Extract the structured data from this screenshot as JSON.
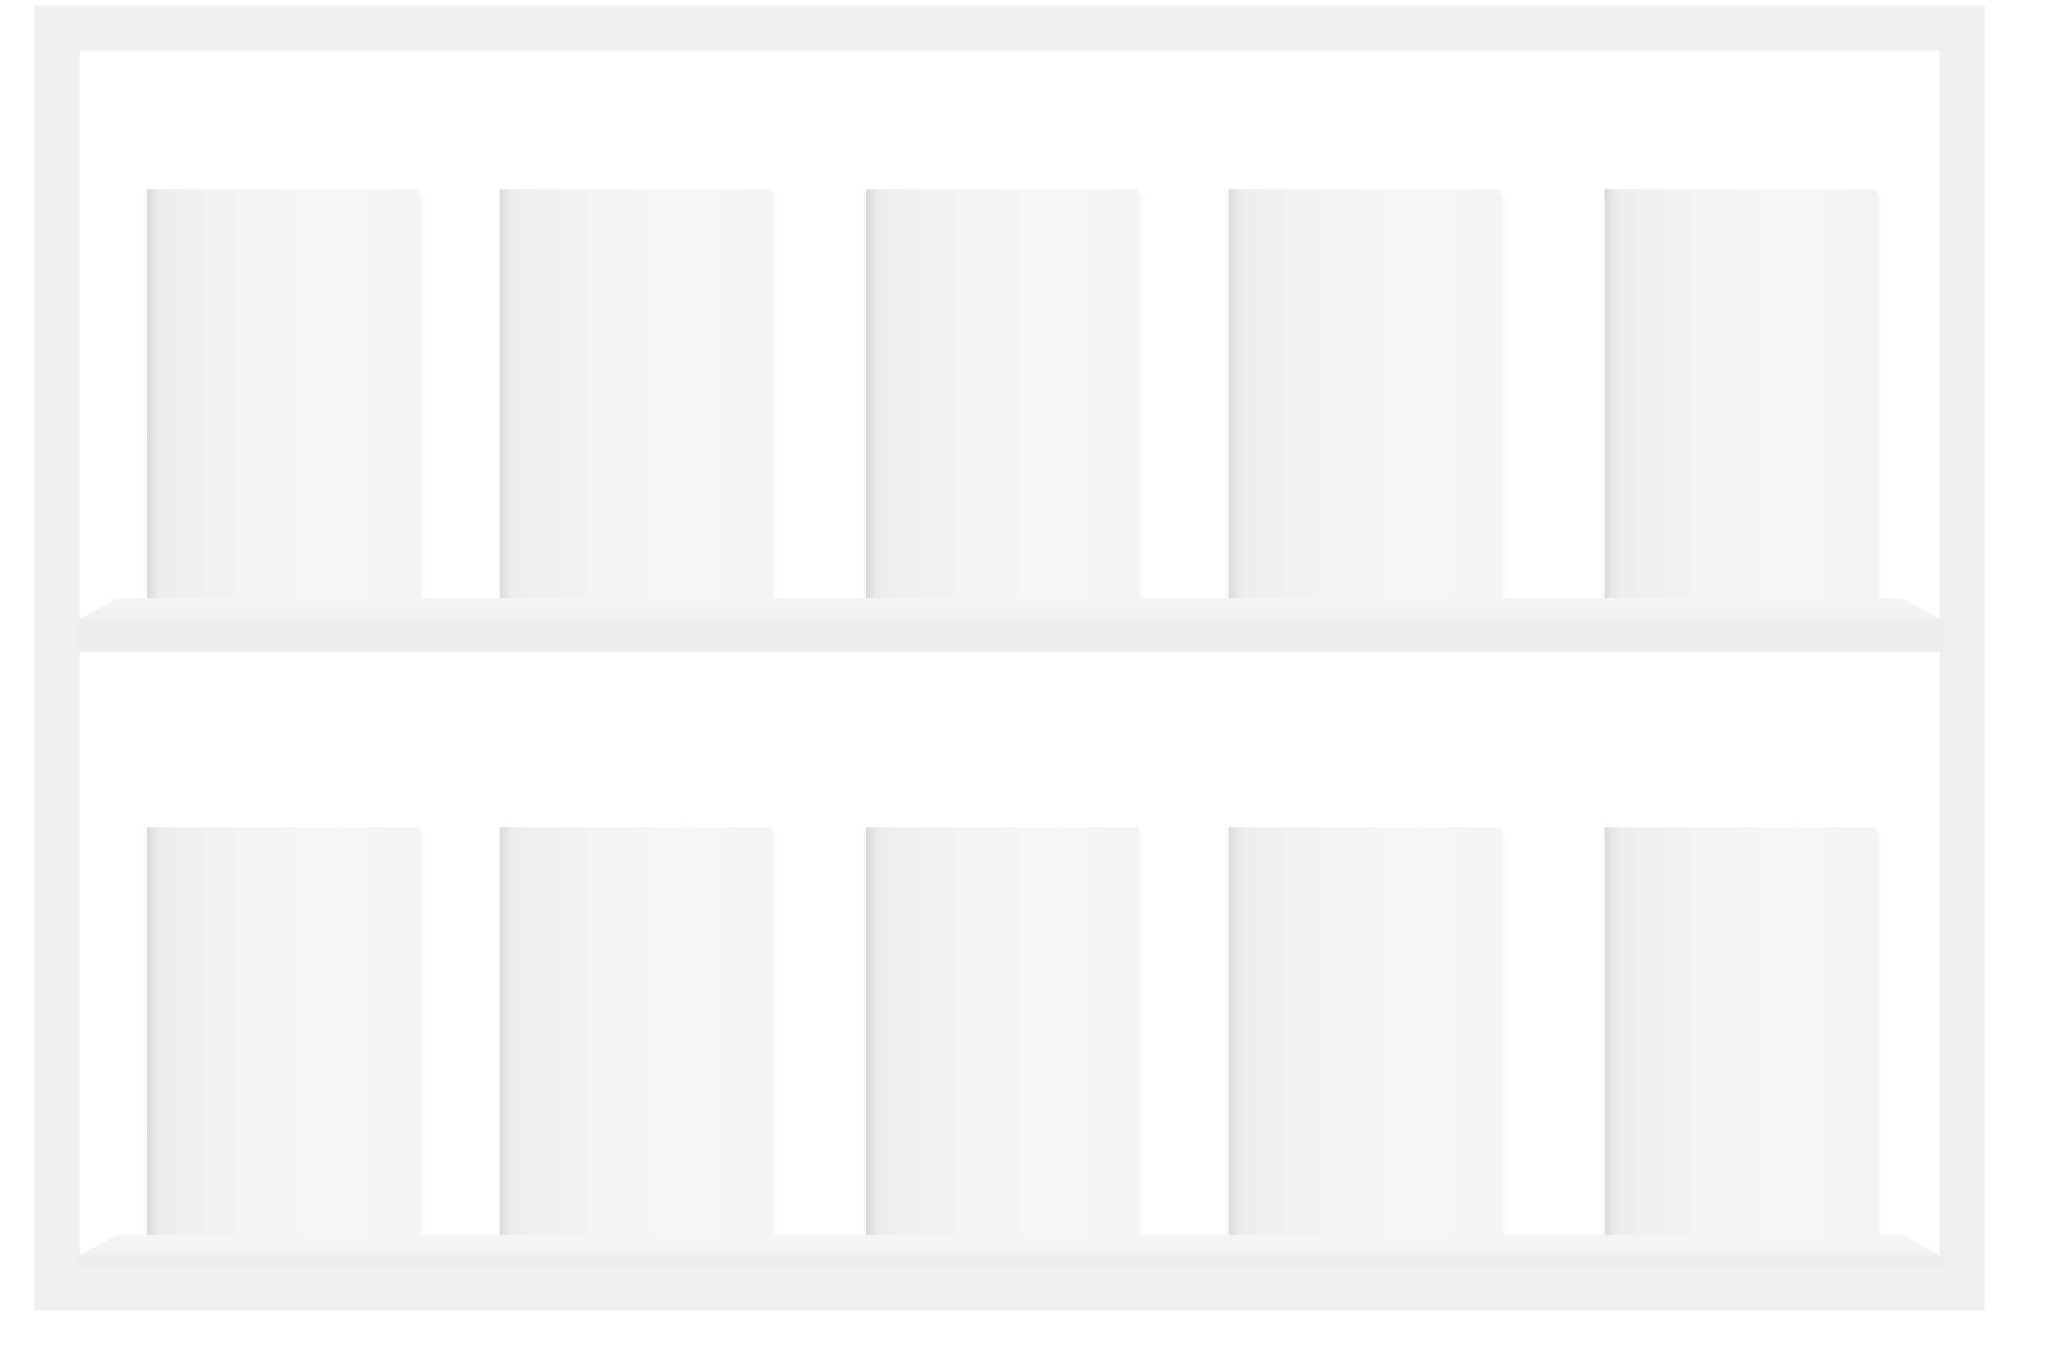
{
  "scene": {
    "shelves": [
      {
        "books": [
          {},
          {},
          {},
          {},
          {}
        ]
      },
      {
        "books": [
          {},
          {},
          {},
          {},
          {}
        ]
      }
    ],
    "colors": {
      "background": "#ffffff",
      "frame": "#efefef",
      "book_cover": "#f3f3f3"
    }
  }
}
